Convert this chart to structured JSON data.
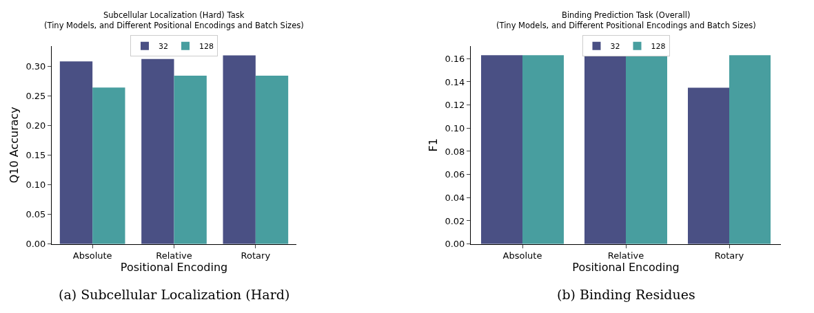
{
  "chart_data": [
    {
      "type": "bar",
      "title": "Subcellular Localization (Hard) Task",
      "subtitle": "(Tiny Models, and Different Positional Encodings and Batch Sizes)",
      "xlabel": "Positional Encoding",
      "ylabel": "Q10 Accuracy",
      "categories": [
        "Absolute",
        "Relative",
        "Rotary"
      ],
      "series": [
        {
          "name": "32",
          "color": "#4a5084",
          "values": [
            0.308,
            0.312,
            0.318
          ]
        },
        {
          "name": "128",
          "color": "#489e9f",
          "values": [
            0.264,
            0.284,
            0.284
          ]
        }
      ],
      "ylim": [
        0,
        0.334
      ],
      "yticks": [
        {
          "value": 0,
          "label": "0.00"
        },
        {
          "value": 0.05,
          "label": "0.05"
        },
        {
          "value": 0.1,
          "label": "0.10"
        },
        {
          "value": 0.15,
          "label": "0.15"
        },
        {
          "value": 0.2,
          "label": "0.20"
        },
        {
          "value": 0.25,
          "label": "0.25"
        },
        {
          "value": 0.3,
          "label": "0.30"
        }
      ],
      "grid": false,
      "legend": "top",
      "annotations": [
        "(a) Subcellular Localization (Hard)"
      ]
    },
    {
      "type": "bar",
      "title": "Binding Prediction Task (Overall)",
      "subtitle": "(Tiny Models, and Different Positional Encodings and Batch Sizes)",
      "xlabel": "Positional Encoding",
      "ylabel": "F1",
      "categories": [
        "Absolute",
        "Relative",
        "Rotary"
      ],
      "series": [
        {
          "name": "32",
          "color": "#4a5084",
          "values": [
            0.163,
            0.163,
            0.135
          ]
        },
        {
          "name": "128",
          "color": "#489e9f",
          "values": [
            0.163,
            0.163,
            0.163
          ]
        }
      ],
      "ylim": [
        0,
        0.171
      ],
      "yticks": [
        {
          "value": 0,
          "label": "0.00"
        },
        {
          "value": 0.02,
          "label": "0.02"
        },
        {
          "value": 0.04,
          "label": "0.04"
        },
        {
          "value": 0.06,
          "label": "0.06"
        },
        {
          "value": 0.08,
          "label": "0.08"
        },
        {
          "value": 0.1,
          "label": "0.10"
        },
        {
          "value": 0.12,
          "label": "0.12"
        },
        {
          "value": 0.14,
          "label": "0.14"
        },
        {
          "value": 0.16,
          "label": "0.16"
        }
      ],
      "grid": false,
      "legend": "top",
      "annotations": [
        "(b) Binding Residues"
      ]
    }
  ]
}
